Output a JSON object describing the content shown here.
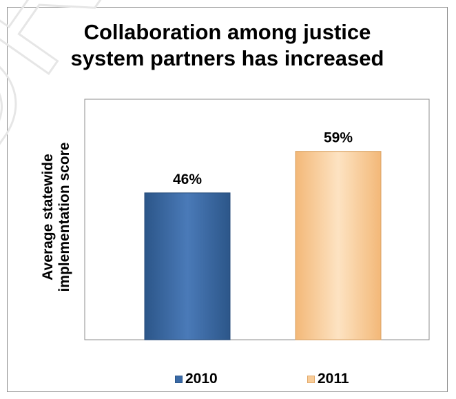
{
  "chart_data": {
    "type": "bar",
    "title": [
      "Collaboration among justice",
      "system partners has increased"
    ],
    "ylabel": [
      "Average statewide",
      "implementation score"
    ],
    "xlabel": "",
    "categories": [
      "2010",
      "2011"
    ],
    "values": [
      46,
      59
    ],
    "data_labels": [
      "46%",
      "59%"
    ],
    "ylim": [
      0,
      100
    ],
    "grid": false,
    "legend": {
      "position": "bottom",
      "entries": [
        "2010",
        "2011"
      ]
    },
    "colors": {
      "2010": "#3a6aa6",
      "2011": "#f8cc98"
    }
  },
  "watermark": {
    "text": "DRAFT"
  }
}
